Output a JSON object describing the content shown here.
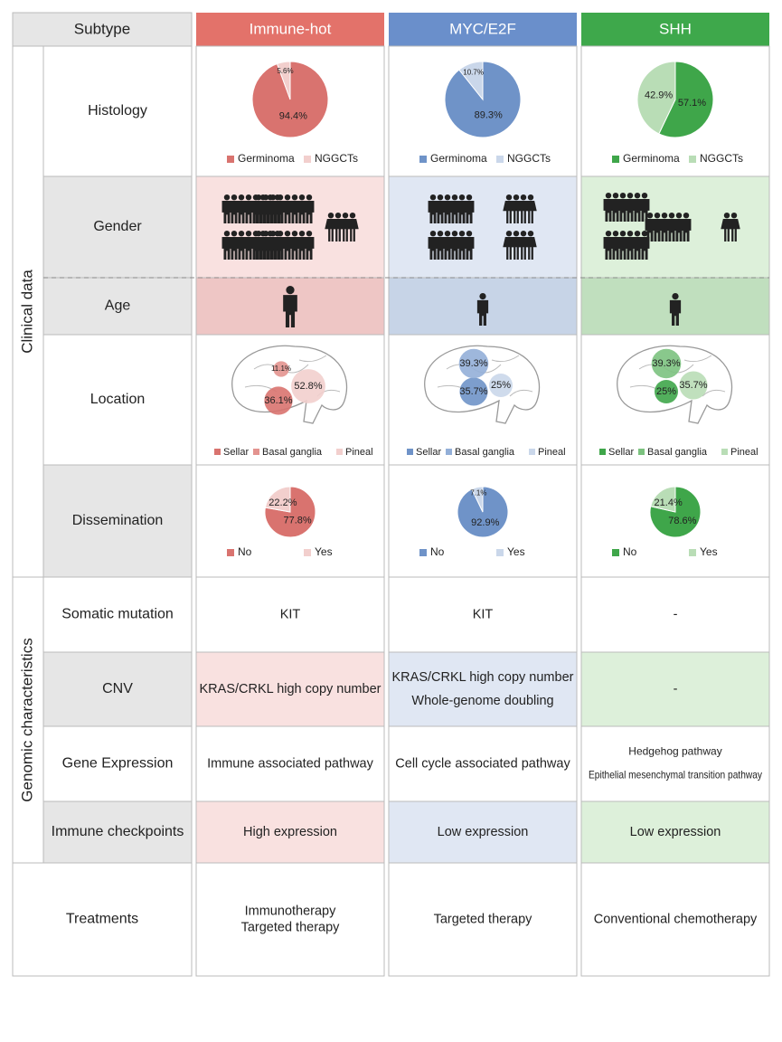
{
  "header": {
    "label": "Subtype",
    "subtypes": [
      {
        "name": "Immune-hot",
        "color": "#e3726a",
        "dark": "#d9736f",
        "mid": "#e3938f",
        "light": "#f2cfcd",
        "bg": "#f9e1e0",
        "bg2": "#eec6c5"
      },
      {
        "name": "MYC/E2F",
        "color": "#6a8fcb",
        "dark": "#6f93c8",
        "mid": "#93afd8",
        "light": "#cad7ea",
        "bg": "#e0e7f3",
        "bg2": "#c7d4e7"
      },
      {
        "name": "SHH",
        "color": "#3ea84b",
        "dark": "#3fa64a",
        "mid": "#7cc27f",
        "light": "#b9ddb6",
        "bg": "#ddf0da",
        "bg2": "#c0dfbe"
      }
    ]
  },
  "sections": [
    "Clinical data",
    "Genomic characteristics"
  ],
  "row_labels": {
    "histology": "Histology",
    "gender": "Gender",
    "age": "Age",
    "location": "Location",
    "dissemination": "Dissemination",
    "somatic": "Somatic mutation",
    "cnv": "CNV",
    "gene": "Gene Expression",
    "immune": "Immune checkpoints",
    "treatments": "Treatments"
  },
  "histology": {
    "legend": [
      "Germinoma",
      "NGGCTs"
    ],
    "pies": [
      {
        "values": [
          94.4,
          5.6
        ],
        "value_labels": [
          "94.4%",
          "5.6%"
        ]
      },
      {
        "values": [
          89.3,
          10.7
        ],
        "value_labels": [
          "89.3%",
          "10.7%"
        ]
      },
      {
        "values": [
          57.1,
          42.9
        ],
        "value_labels": [
          "57.1%",
          "42.9%"
        ]
      }
    ]
  },
  "location": {
    "legend": [
      "Sellar",
      "Basal ganglia",
      "Pineal"
    ],
    "bubbles": [
      {
        "values": [
          36.1,
          11.1,
          52.8
        ],
        "value_labels": [
          "36.1%",
          "11.1%",
          "52.8%"
        ]
      },
      {
        "values": [
          35.7,
          39.3,
          25
        ],
        "value_labels": [
          "35.7%",
          "39.3%",
          "25%"
        ]
      },
      {
        "values": [
          25,
          39.3,
          35.7
        ],
        "value_labels": [
          "25%",
          "39.3%",
          "35.7%"
        ]
      }
    ]
  },
  "dissemination": {
    "legend": [
      "No",
      "Yes"
    ],
    "pies": [
      {
        "values": [
          77.8,
          22.2
        ],
        "value_labels": [
          "77.8%",
          "22.2%"
        ]
      },
      {
        "values": [
          92.9,
          7.1
        ],
        "value_labels": [
          "92.9%",
          "7.1%"
        ]
      },
      {
        "values": [
          78.6,
          21.4
        ],
        "value_labels": [
          "78.6%",
          "21.4%"
        ]
      }
    ]
  },
  "somatic": [
    [
      "KIT"
    ],
    [
      "KIT"
    ],
    [
      "-"
    ]
  ],
  "cnv": [
    [
      "KRAS/CRKL high copy number"
    ],
    [
      "KRAS/CRKL high copy number",
      "Whole-genome doubling"
    ],
    [
      "-"
    ]
  ],
  "gene": [
    [
      "Immune associated pathway"
    ],
    [
      "Cell cycle associated pathway"
    ],
    [
      "Hedgehog  pathway",
      "Epithelial mesenchymal transition pathway"
    ]
  ],
  "immune": [
    [
      "High expression"
    ],
    [
      "Low expression"
    ],
    [
      "Low expression"
    ]
  ],
  "treatments": [
    [
      "Immunotherapy",
      "Targeted therapy"
    ],
    [
      "Targeted therapy"
    ],
    [
      "Conventional chemotherapy"
    ]
  ]
}
